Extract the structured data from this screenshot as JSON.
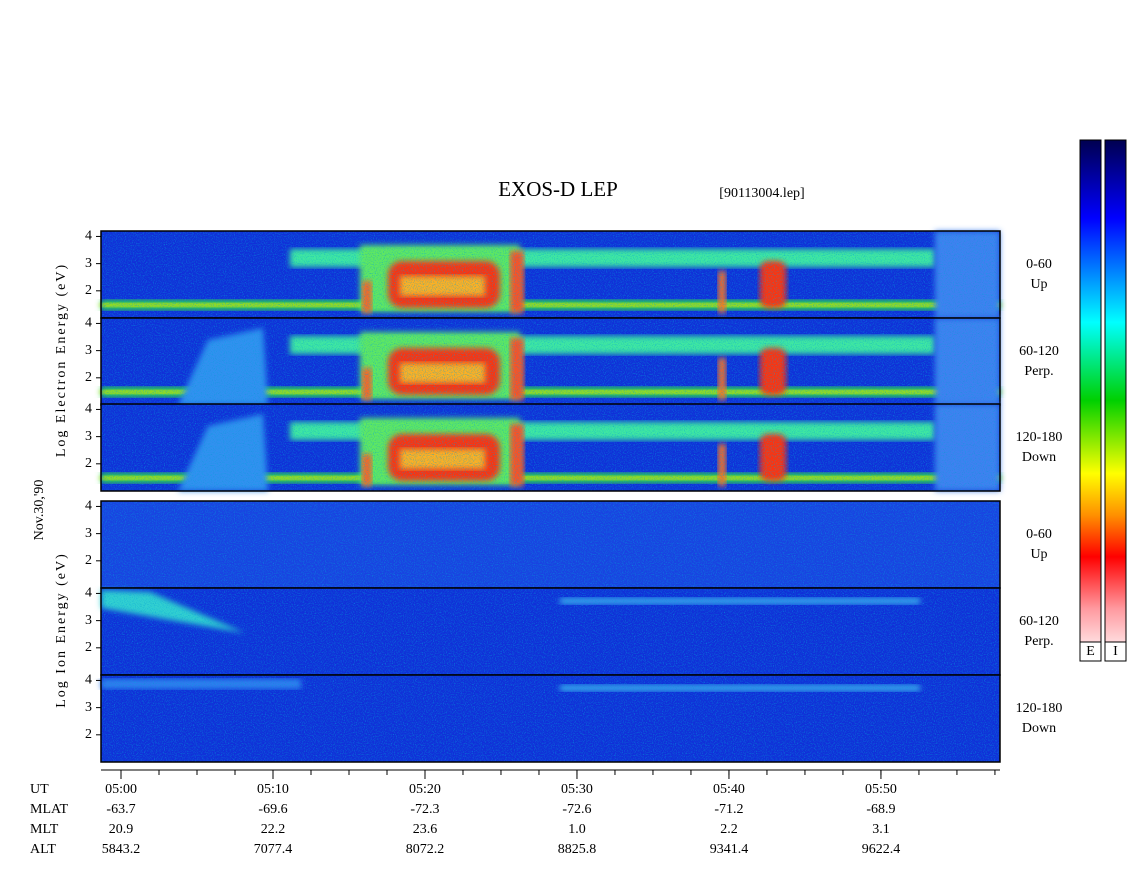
{
  "chart_data": {
    "type": "spectrogram",
    "title": "EXOS-D LEP",
    "subtitle": "[90113004.lep]",
    "date_label": "Nov.30,'90",
    "electron_ylabel": "Log Electron Energy (eV)",
    "ion_ylabel": "Log Ion Energy (eV)",
    "ylim": [
      1,
      4.2
    ],
    "yticks": [
      2,
      3,
      4
    ],
    "xlim": [
      "04:58:41",
      "05:57:50"
    ],
    "panels": [
      {
        "group": "electron",
        "label": [
          "0-60",
          "Up"
        ]
      },
      {
        "group": "electron",
        "label": [
          "60-120",
          "Perp."
        ]
      },
      {
        "group": "electron",
        "label": [
          "120-180",
          "Down"
        ]
      },
      {
        "group": "ion",
        "label": [
          "0-60",
          "Up"
        ]
      },
      {
        "group": "ion",
        "label": [
          "60-120",
          "Perp."
        ]
      },
      {
        "group": "ion",
        "label": [
          "120-180",
          "Down"
        ]
      }
    ],
    "colorbar_labels": [
      "E",
      "I"
    ],
    "table": [
      {
        "name": "UT",
        "values": [
          "05:00",
          "05:10",
          "05:20",
          "05:30",
          "05:40",
          "05:50"
        ]
      },
      {
        "name": "MLAT",
        "values": [
          "-63.7",
          "-69.6",
          "-72.3",
          "-72.6",
          "-71.2",
          "-68.9"
        ]
      },
      {
        "name": "MLT",
        "values": [
          "20.9",
          "22.2",
          "23.6",
          "1.0",
          "2.2",
          "3.1"
        ]
      },
      {
        "name": "ALT",
        "values": [
          "5843.2",
          "7077.4",
          "8072.2",
          "8825.8",
          "9341.4",
          "9622.4"
        ]
      }
    ]
  }
}
